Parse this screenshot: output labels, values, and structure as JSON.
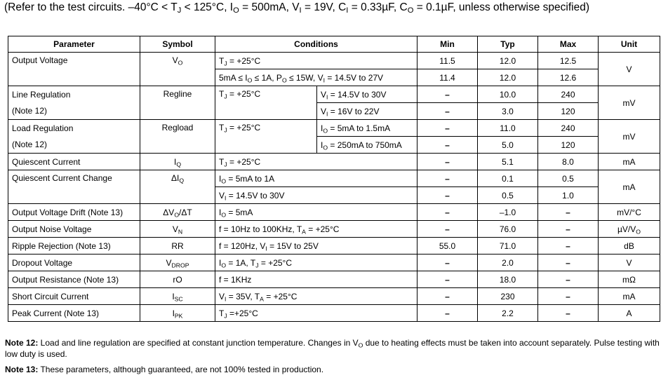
{
  "caption": {
    "prefix": "(Refer to the test circuits. ",
    "parts": [
      {
        "t": "–40°C < T"
      },
      {
        "sub": "J"
      },
      {
        "t": " < 125°C, I"
      },
      {
        "sub": "O"
      },
      {
        "t": " = 500mA, V"
      },
      {
        "sub": "I"
      },
      {
        "t": " = 19V, C"
      },
      {
        "sub": "I"
      },
      {
        "t": " = 0.33µF, C"
      },
      {
        "sub": "O"
      },
      {
        "t": " = 0.1µF, unless otherwise specified)"
      }
    ]
  },
  "table": {
    "headers": {
      "parameter": "Parameter",
      "symbol": "Symbol",
      "conditions": "Conditions",
      "min": "Min",
      "typ": "Typ",
      "max": "Max",
      "unit": "Unit"
    },
    "rows": {
      "output_voltage": {
        "parameter": "Output Voltage",
        "symbol": "V",
        "symbol_sub": "O",
        "cond1": "T",
        "cond1_sub": "J",
        "cond1_rest": " = +25°C",
        "cond2_parts": [
          "5mA ≤ I",
          "O",
          " ≤ 1A, P",
          "O",
          " ≤ 15W, V",
          "I",
          " = 14.5V to 27V"
        ],
        "min": [
          "11.5",
          "11.4"
        ],
        "typ": [
          "12.0",
          "12.0"
        ],
        "max": [
          "12.5",
          "12.6"
        ],
        "unit": "V"
      },
      "line_regulation": {
        "parameter": "Line Regulation",
        "note": "(Note 12)",
        "symbol": "Regline",
        "cond_main": "T",
        "cond_main_sub": "J",
        "cond_main_rest": " = +25°C",
        "sub1": "V",
        "sub1_sub": "I",
        "sub1_rest": " = 14.5V to 30V",
        "sub2": "V",
        "sub2_sub": "I",
        "sub2_rest": " = 16V to 22V",
        "min": [
          "–",
          "–"
        ],
        "typ": [
          "10.0",
          "3.0"
        ],
        "max": [
          "240",
          "120"
        ],
        "unit": "mV"
      },
      "load_regulation": {
        "parameter": "Load Regulation",
        "note": "(Note 12)",
        "symbol": "Regload",
        "cond_main": "T",
        "cond_main_sub": "J",
        "cond_main_rest": " = +25°C",
        "sub1": "I",
        "sub1_sub": "O",
        "sub1_rest": " = 5mA to 1.5mA",
        "sub2": "I",
        "sub2_sub": "O",
        "sub2_rest": " = 250mA to 750mA",
        "min": [
          "–",
          "–"
        ],
        "typ": [
          "11.0",
          "5.0"
        ],
        "max": [
          "240",
          "120"
        ],
        "unit": "mV"
      },
      "quiescent_current": {
        "parameter": "Quiescent Current",
        "symbol": "I",
        "symbol_sub": "Q",
        "cond": "T",
        "cond_sub": "J",
        "cond_rest": " = +25°C",
        "min": "–",
        "typ": "5.1",
        "max": "8.0",
        "unit": "mA"
      },
      "quiescent_current_change": {
        "parameter": "Quiescent Current Change",
        "symbol": "ΔI",
        "symbol_sub": "Q",
        "cond1": "I",
        "cond1_sub": "O",
        "cond1_rest": " = 5mA to 1A",
        "cond2": "V",
        "cond2_sub": "I",
        "cond2_rest": " = 14.5V to 30V",
        "min": [
          "–",
          "–"
        ],
        "typ": [
          "0.1",
          "0.5"
        ],
        "max": [
          "0.5",
          "1.0"
        ],
        "unit": "mA"
      },
      "single": [
        {
          "parameter": "Output Voltage Drift (Note 13)",
          "sym": [
            "ΔV",
            "O",
            "/ΔT"
          ],
          "cond": [
            "I",
            "O",
            " = 5mA"
          ],
          "min": "–",
          "typ": "–1.0",
          "max": "–",
          "unit": [
            "mV/°C",
            "",
            ""
          ]
        },
        {
          "parameter": "Output Noise Voltage",
          "sym": [
            "V",
            "N",
            ""
          ],
          "cond": [
            "f = 10Hz to 100KHz, T",
            "A",
            " = +25°C"
          ],
          "min": "–",
          "typ": "76.0",
          "max": "–",
          "unit": [
            "µV/V",
            "O",
            ""
          ]
        },
        {
          "parameter": "Ripple Rejection (Note 13)",
          "sym": [
            "RR",
            "",
            ""
          ],
          "cond": [
            "f = 120Hz, V",
            "I",
            " = 15V to 25V"
          ],
          "min": "55.0",
          "typ": "71.0",
          "max": "–",
          "unit": [
            "dB",
            "",
            ""
          ]
        },
        {
          "parameter": "Dropout Voltage",
          "sym": [
            "V",
            "DROP",
            ""
          ],
          "cond": [
            "I",
            "O",
            " = 1A, T",
            "J",
            " = +25°C"
          ],
          "min": "–",
          "typ": "2.0",
          "max": "–",
          "unit": [
            "V",
            "",
            ""
          ]
        },
        {
          "parameter": "Output Resistance (Note 13)",
          "sym": [
            "rO",
            "",
            ""
          ],
          "cond": [
            "f = 1KHz",
            "",
            ""
          ],
          "min": "–",
          "typ": "18.0",
          "max": "–",
          "unit": [
            "mΩ",
            "",
            ""
          ]
        },
        {
          "parameter": "Short Circuit Current",
          "sym": [
            "I",
            "SC",
            ""
          ],
          "cond": [
            "V",
            "I",
            " = 35V, T",
            "A",
            " = +25°C"
          ],
          "min": "–",
          "typ": "230",
          "max": "–",
          "unit": [
            "mA",
            "",
            ""
          ]
        },
        {
          "parameter": "Peak Current (Note 13)",
          "sym": [
            "I",
            "PK",
            ""
          ],
          "cond": [
            "T",
            "J",
            " =+25°C"
          ],
          "min": "–",
          "typ": "2.2",
          "max": "–",
          "unit": [
            "A",
            "",
            ""
          ]
        }
      ]
    }
  },
  "notes": {
    "note12_label": "Note 12:",
    "note12_parts": [
      " Load and line regulation are specified at constant junction temperature. Changes in V",
      "O",
      " due to heating effects must be taken into account separately. Pulse testing with low duty is used."
    ],
    "note13_label": "Note 13:",
    "note13_text": " These parameters, although guaranteed, are not 100% tested in production."
  }
}
